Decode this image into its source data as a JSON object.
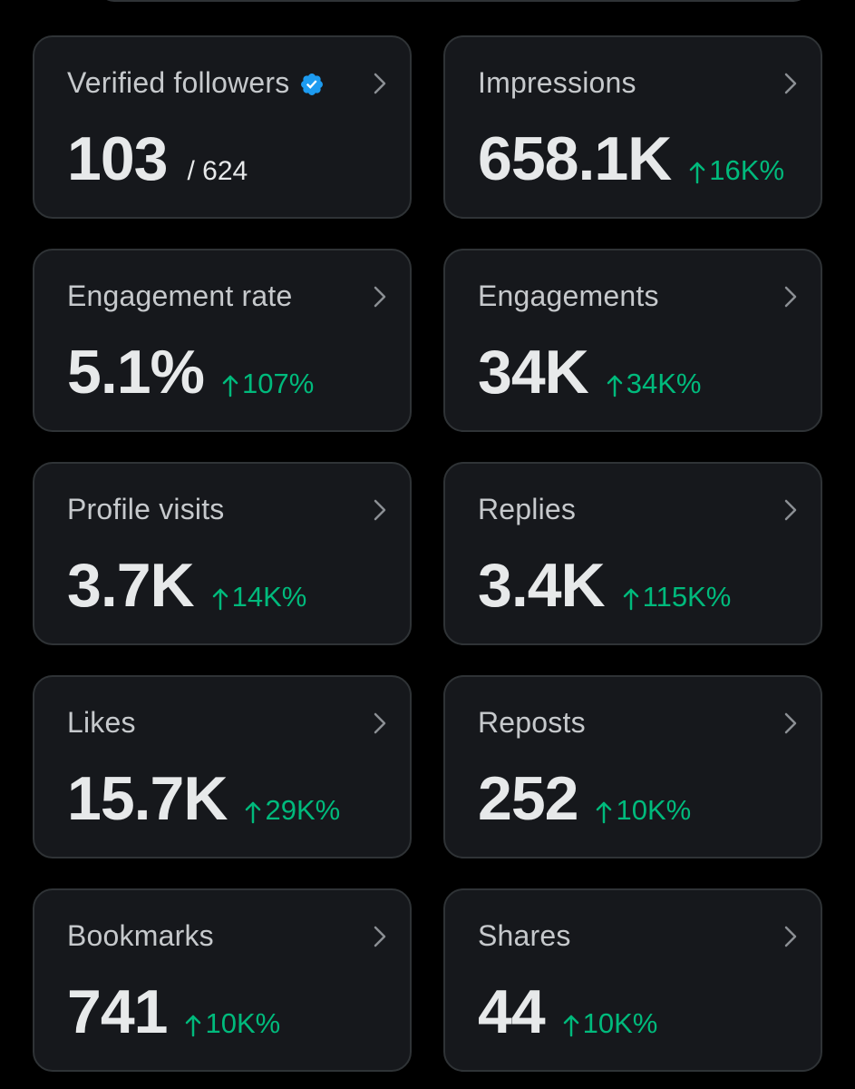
{
  "colors": {
    "background": "#000000",
    "card": "#16181c",
    "card_border": "#2f3336",
    "label": "#c6c9cc",
    "value": "#e7e9ea",
    "positive": "#00ba7c",
    "verified": "#1d9bf0"
  },
  "icons": {
    "verified": "verified-badge-icon",
    "chevron": "chevron-right-icon",
    "arrow": "arrow-up-icon"
  },
  "cards": [
    {
      "label": "Verified followers",
      "value": "103",
      "subtotal": "/ 624",
      "verified": true
    },
    {
      "label": "Impressions",
      "value": "658.1K",
      "change": "16K%"
    },
    {
      "label": "Engagement rate",
      "value": "5.1%",
      "change": "107%"
    },
    {
      "label": "Engagements",
      "value": "34K",
      "change": "34K%"
    },
    {
      "label": "Profile visits",
      "value": "3.7K",
      "change": "14K%"
    },
    {
      "label": "Replies",
      "value": "3.4K",
      "change": "115K%"
    },
    {
      "label": "Likes",
      "value": "15.7K",
      "change": "29K%"
    },
    {
      "label": "Reposts",
      "value": "252",
      "change": "10K%"
    },
    {
      "label": "Bookmarks",
      "value": "741",
      "change": "10K%"
    },
    {
      "label": "Shares",
      "value": "44",
      "change": "10K%"
    }
  ]
}
